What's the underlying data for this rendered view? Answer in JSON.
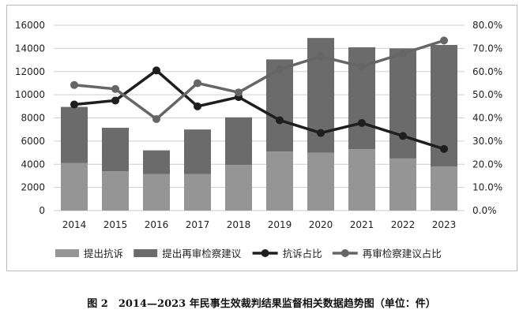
{
  "chart_data": {
    "type": "bar",
    "title": "图 2　2014—2023 年民事生效裁判结果监督相关数据趋势图（单位：件）",
    "categories": [
      "2014",
      "2015",
      "2016",
      "2017",
      "2018",
      "2019",
      "2020",
      "2021",
      "2022",
      "2023"
    ],
    "series": [
      {
        "name": "提出抗诉",
        "type": "bar",
        "stack": "a",
        "axis": "left",
        "color": "#959595",
        "values": [
          4100,
          3400,
          3150,
          3150,
          3950,
          5100,
          5000,
          5300,
          4500,
          3800
        ]
      },
      {
        "name": "提出再审检察建议",
        "type": "bar",
        "stack": "a",
        "axis": "left",
        "color": "#6b6b6b",
        "values": [
          4850,
          3750,
          2050,
          3850,
          4100,
          7950,
          9900,
          8800,
          9500,
          10500
        ]
      },
      {
        "name": "抗诉占比",
        "type": "line",
        "axis": "right",
        "color": "#1e1e1e",
        "values": [
          45.8,
          47.5,
          60.5,
          45.0,
          49.0,
          39.0,
          33.5,
          37.8,
          32.2,
          26.6
        ]
      },
      {
        "name": "再审检察建议占比",
        "type": "line",
        "axis": "right",
        "color": "#666666",
        "values": [
          54.2,
          52.5,
          39.5,
          55.0,
          51.0,
          61.0,
          66.5,
          62.2,
          67.8,
          73.4
        ]
      }
    ],
    "ylim": [
      0,
      16000
    ],
    "yticks": [
      "0",
      "2000",
      "4000",
      "6000",
      "8000",
      "10000",
      "12000",
      "14000",
      "16000"
    ],
    "y2lim": [
      0,
      80
    ],
    "y2ticks": [
      "0.0%",
      "10.0%",
      "20.0%",
      "30.0%",
      "40.0%",
      "50.0%",
      "60.0%",
      "70.0%",
      "80.0%"
    ],
    "grid": true,
    "legend": "bottom"
  }
}
